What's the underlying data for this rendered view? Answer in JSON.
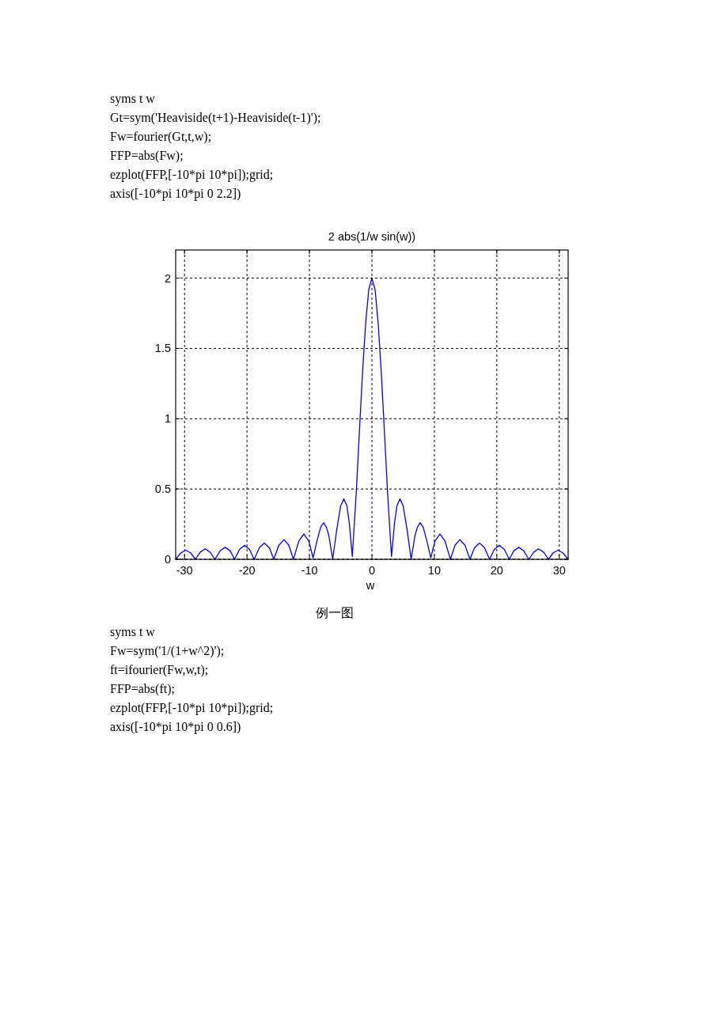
{
  "chart_data": {
    "type": "line",
    "title": "2 abs(1/w sin(w))",
    "xlabel": "w",
    "x": [
      -31.42,
      -30.6,
      -29.81,
      -29.0,
      -28.27,
      -27.5,
      -26.67,
      -25.9,
      -25.13,
      -24.3,
      -23.52,
      -22.7,
      -21.99,
      -21.2,
      -20.37,
      -19.6,
      -18.85,
      -18.0,
      -17.22,
      -16.4,
      -15.71,
      -14.9,
      -14.07,
      -13.3,
      -12.57,
      -11.7,
      -10.9,
      -10.1,
      -9.42,
      -8.8,
      -8.2,
      -7.73,
      -7.3,
      -6.9,
      -6.28,
      -5.6,
      -5.0,
      -4.49,
      -4.0,
      -3.6,
      -3.14,
      -2.5,
      -2.0,
      -1.5,
      -1.0,
      -0.5,
      0,
      0.5,
      1.0,
      1.5,
      2.0,
      2.5,
      3.14,
      3.6,
      4.0,
      4.49,
      5.0,
      5.6,
      6.28,
      6.9,
      7.3,
      7.73,
      8.2,
      8.8,
      9.42,
      10.1,
      10.9,
      11.7,
      12.57,
      13.3,
      14.07,
      14.9,
      15.71,
      16.4,
      17.22,
      18.0,
      18.85,
      19.6,
      20.37,
      21.2,
      21.99,
      22.7,
      23.52,
      24.3,
      25.13,
      25.9,
      26.67,
      27.5,
      28.27,
      29.0,
      29.81,
      30.6,
      31.42
    ],
    "values": [
      0,
      0.045,
      0.065,
      0.045,
      0,
      0.05,
      0.075,
      0.05,
      0,
      0.06,
      0.085,
      0.06,
      0,
      0.07,
      0.1,
      0.07,
      0,
      0.085,
      0.115,
      0.08,
      0,
      0.1,
      0.14,
      0.1,
      0,
      0.13,
      0.18,
      0.13,
      0.01,
      0.13,
      0.23,
      0.26,
      0.23,
      0.17,
      0,
      0.22,
      0.38,
      0.43,
      0.38,
      0.25,
      0.02,
      0.48,
      0.91,
      1.33,
      1.68,
      1.92,
      2.0,
      1.92,
      1.68,
      1.33,
      0.91,
      0.48,
      0.02,
      0.25,
      0.38,
      0.43,
      0.38,
      0.22,
      0,
      0.17,
      0.23,
      0.26,
      0.23,
      0.13,
      0.01,
      0.13,
      0.18,
      0.13,
      0,
      0.1,
      0.14,
      0.1,
      0,
      0.08,
      0.115,
      0.085,
      0,
      0.07,
      0.1,
      0.07,
      0,
      0.06,
      0.085,
      0.06,
      0,
      0.05,
      0.075,
      0.05,
      0,
      0.045,
      0.065,
      0.045,
      0
    ],
    "color": "#0000ff",
    "line_style": "solid",
    "xlim": [
      -31.42,
      31.42
    ],
    "ylim": [
      0,
      2.2
    ],
    "xticks": [
      -30,
      -20,
      -10,
      0,
      10,
      20,
      30
    ],
    "yticks": [
      0,
      0.5,
      1,
      1.5,
      2
    ],
    "grid": true,
    "annotations": [
      "syms t w",
      "Gt=sym('Heaviside(t+1)-Heaviside(t-1)');",
      "Fw=fourier(Gt,t,w);",
      "FFP=abs(Fw);",
      "ezplot(FFP,[-10*pi 10*pi]);grid;",
      "axis([-10*pi 10*pi 0 2.2])",
      "例一图",
      "syms t w",
      "Fw=sym('1/(1+w^2)');",
      "ft=ifourier(Fw,w,t);",
      "FFP=abs(ft);",
      "ezplot(FFP,[-10*pi 10*pi]);grid;",
      "axis([-10*pi 10*pi 0 0.6])"
    ]
  }
}
